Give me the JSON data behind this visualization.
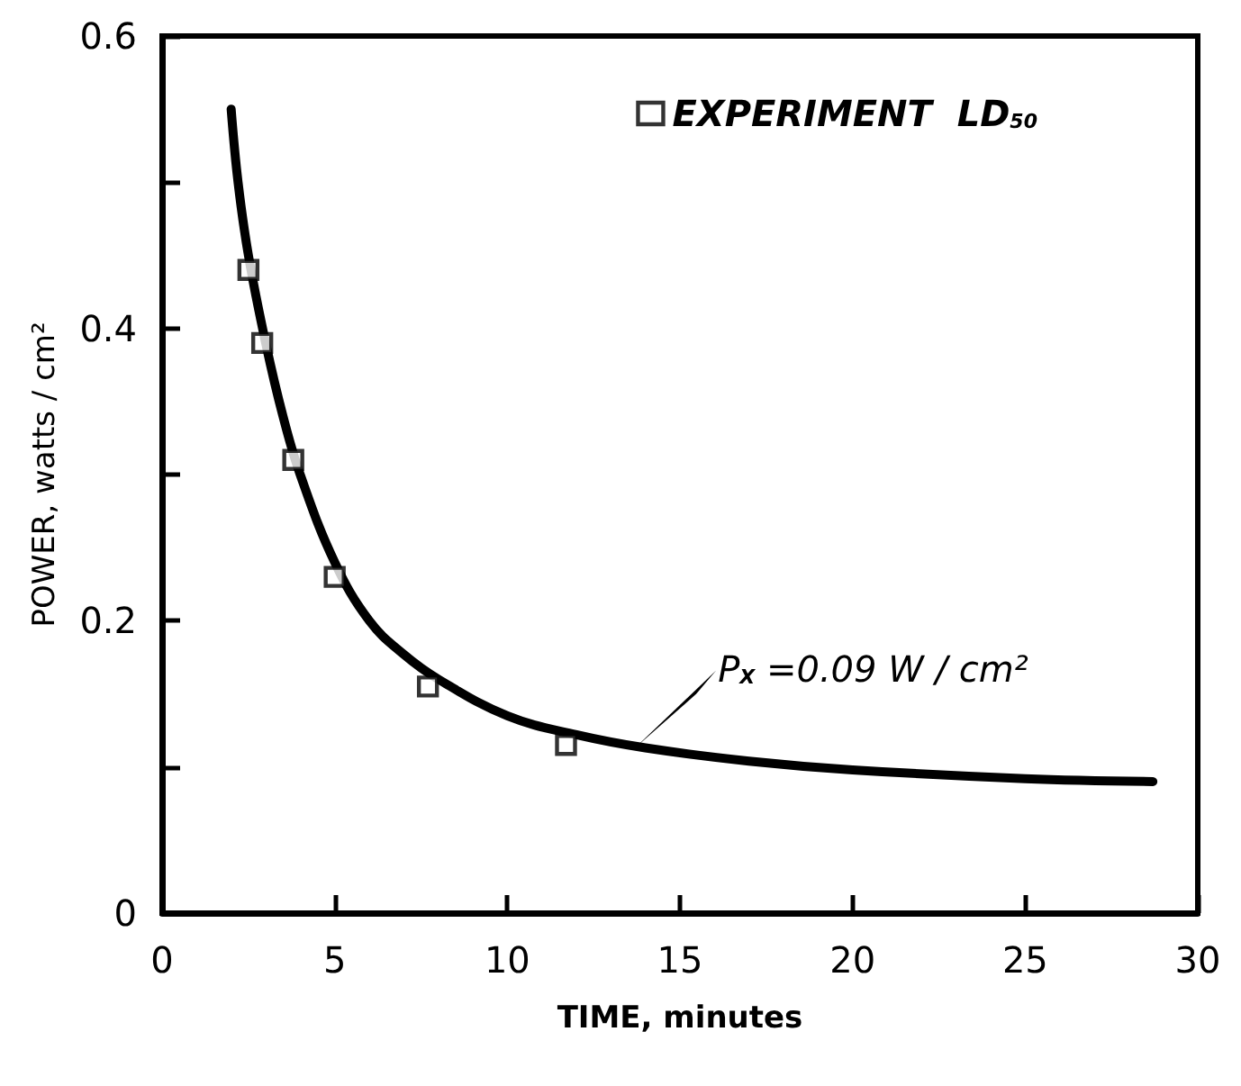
{
  "chart_data": {
    "type": "scatter",
    "xlabel": "TIME, minutes",
    "ylabel": "POWER, watts / cm²",
    "xlim": [
      0,
      30
    ],
    "xticks": [
      0,
      5,
      10,
      15,
      20,
      25,
      30
    ],
    "ylim": [
      0,
      0.6
    ],
    "yticks": [
      0,
      {
        "value": 0.1,
        "label": null
      },
      0.2,
      {
        "value": 0.3,
        "label": null
      },
      0.4,
      {
        "value": 0.5,
        "label": null
      },
      0.6
    ],
    "series": [
      {
        "name": "EXPERIMENT  LD$_{50}$",
        "marker": "square",
        "color": "#000000",
        "x": [
          2.5,
          2.9,
          3.8,
          5.0,
          7.7,
          11.7
        ],
        "values": [
          0.44,
          0.39,
          0.31,
          0.23,
          0.155,
          0.115
        ]
      },
      {
        "type": "line",
        "marker": "none",
        "color": "#000000",
        "x": [
          2.0,
          2.2,
          2.5,
          3.0,
          3.5,
          4.0,
          5.0,
          6.0,
          7.0,
          8.0,
          10.0,
          12.0,
          14.0,
          17.0,
          20.0,
          25.0,
          28.7
        ],
        "values": [
          0.55,
          0.5,
          0.45,
          0.39,
          0.34,
          0.3,
          0.24,
          0.2,
          0.177,
          0.16,
          0.135,
          0.122,
          0.113,
          0.104,
          0.098,
          0.092,
          0.09
        ]
      }
    ],
    "annotations": [
      {
        "text": "P$_{X}$ =0.09 W / cm²",
        "x": 13.7,
        "y": 0.113
      }
    ],
    "legend": "top right",
    "grid": false
  }
}
